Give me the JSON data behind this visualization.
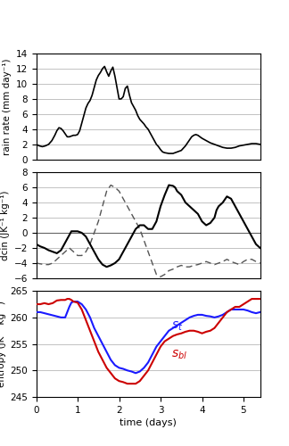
{
  "xlabel": "time (days)",
  "panel1_ylabel": "rain rate (mm day⁻¹)",
  "panel2_ylabel": "dcin (JK⁻¹ kg⁻¹)",
  "panel3_ylabel": "entropy (JK⁻¹ kg⁻¹)",
  "panel1_ylim": [
    0,
    14
  ],
  "panel2_ylim": [
    -6,
    8
  ],
  "panel3_ylim": [
    245,
    265
  ],
  "panel1_yticks": [
    0,
    2,
    4,
    6,
    8,
    10,
    12,
    14
  ],
  "panel2_yticks": [
    -6,
    -4,
    -2,
    0,
    2,
    4,
    6,
    8
  ],
  "panel3_yticks": [
    245,
    250,
    255,
    260,
    265
  ],
  "xlim": [
    0,
    5.4
  ],
  "xticks": [
    0,
    1,
    2,
    3,
    4,
    5
  ],
  "line_color": "#000000",
  "line_color_blue": "#1a1aff",
  "line_color_red": "#cc0000",
  "grid_color": "#aaaaaa",
  "background": "#ffffff",
  "label_st": "$s_t$",
  "label_sbl": "$s_{bl}$",
  "rain_x": [
    0.0,
    0.08,
    0.15,
    0.22,
    0.3,
    0.38,
    0.45,
    0.5,
    0.55,
    0.6,
    0.65,
    0.7,
    0.75,
    0.8,
    0.85,
    0.9,
    0.95,
    1.0,
    1.05,
    1.1,
    1.15,
    1.2,
    1.25,
    1.3,
    1.35,
    1.4,
    1.45,
    1.5,
    1.55,
    1.6,
    1.65,
    1.7,
    1.75,
    1.8,
    1.85,
    1.9,
    1.95,
    2.0,
    2.05,
    2.1,
    2.15,
    2.2,
    2.25,
    2.3,
    2.35,
    2.4,
    2.45,
    2.5,
    2.55,
    2.6,
    2.65,
    2.7,
    2.75,
    2.8,
    2.85,
    2.9,
    2.95,
    3.0,
    3.05,
    3.1,
    3.2,
    3.3,
    3.4,
    3.5,
    3.55,
    3.6,
    3.65,
    3.7,
    3.75,
    3.8,
    3.85,
    3.9,
    3.95,
    4.0,
    4.1,
    4.2,
    4.3,
    4.4,
    4.5,
    4.6,
    4.7,
    4.8,
    4.9,
    5.0,
    5.1,
    5.2,
    5.3,
    5.4
  ],
  "rain_y": [
    2.0,
    1.8,
    1.7,
    1.8,
    2.0,
    2.5,
    3.2,
    3.8,
    4.2,
    4.1,
    3.8,
    3.4,
    3.0,
    3.0,
    3.1,
    3.2,
    3.2,
    3.3,
    3.8,
    4.8,
    5.8,
    6.8,
    7.4,
    7.8,
    8.5,
    9.5,
    10.5,
    11.1,
    11.5,
    12.0,
    12.3,
    11.6,
    11.0,
    11.7,
    12.2,
    11.0,
    9.5,
    8.0,
    8.0,
    8.3,
    9.4,
    9.7,
    8.5,
    7.5,
    7.0,
    6.5,
    5.8,
    5.3,
    5.0,
    4.7,
    4.3,
    4.0,
    3.5,
    3.0,
    2.5,
    2.0,
    1.7,
    1.3,
    1.0,
    0.9,
    0.8,
    0.8,
    1.0,
    1.2,
    1.5,
    1.8,
    2.2,
    2.6,
    3.0,
    3.2,
    3.3,
    3.2,
    3.0,
    2.8,
    2.5,
    2.2,
    2.0,
    1.8,
    1.6,
    1.5,
    1.5,
    1.6,
    1.8,
    1.9,
    2.0,
    2.1,
    2.1,
    2.0
  ],
  "dcin_solid_x": [
    0.0,
    0.1,
    0.2,
    0.3,
    0.4,
    0.5,
    0.6,
    0.65,
    0.7,
    0.75,
    0.8,
    0.85,
    0.9,
    1.0,
    1.1,
    1.2,
    1.3,
    1.4,
    1.5,
    1.6,
    1.7,
    1.8,
    1.9,
    2.0,
    2.1,
    2.2,
    2.3,
    2.4,
    2.5,
    2.6,
    2.7,
    2.8,
    2.9,
    3.0,
    3.1,
    3.2,
    3.3,
    3.35,
    3.4,
    3.5,
    3.6,
    3.7,
    3.8,
    3.9,
    4.0,
    4.1,
    4.2,
    4.3,
    4.35,
    4.4,
    4.5,
    4.6,
    4.7,
    4.8,
    4.9,
    5.0,
    5.1,
    5.2,
    5.3,
    5.4
  ],
  "dcin_solid_y": [
    -1.5,
    -1.8,
    -2.0,
    -2.3,
    -2.5,
    -2.7,
    -2.3,
    -1.8,
    -1.3,
    -0.8,
    -0.3,
    0.2,
    0.2,
    0.2,
    0.0,
    -0.5,
    -1.5,
    -2.5,
    -3.5,
    -4.2,
    -4.5,
    -4.3,
    -4.0,
    -3.5,
    -2.5,
    -1.5,
    -0.5,
    0.5,
    1.0,
    1.0,
    0.5,
    0.5,
    1.5,
    3.5,
    5.0,
    6.3,
    6.2,
    6.0,
    5.5,
    5.0,
    4.0,
    3.5,
    3.0,
    2.5,
    1.5,
    1.0,
    1.3,
    2.0,
    3.0,
    3.5,
    4.0,
    4.8,
    4.5,
    3.5,
    2.5,
    1.5,
    0.5,
    -0.5,
    -1.5,
    -2.0
  ],
  "dcin_dashed_x": [
    0.0,
    0.1,
    0.2,
    0.3,
    0.4,
    0.5,
    0.6,
    0.7,
    0.8,
    0.9,
    1.0,
    1.1,
    1.2,
    1.3,
    1.4,
    1.5,
    1.6,
    1.7,
    1.8,
    1.9,
    2.0,
    2.1,
    2.2,
    2.3,
    2.4,
    2.5,
    2.6,
    2.7,
    2.8,
    2.9,
    3.0,
    3.1,
    3.2,
    3.3,
    3.4,
    3.5,
    3.6,
    3.7,
    3.8,
    3.9,
    4.0,
    4.1,
    4.2,
    4.3,
    4.4,
    4.5,
    4.6,
    4.7,
    4.8,
    4.9,
    5.0,
    5.1,
    5.2,
    5.3,
    5.4
  ],
  "dcin_dashed_y": [
    -4.0,
    -4.1,
    -4.2,
    -4.2,
    -4.0,
    -3.5,
    -3.0,
    -2.5,
    -2.0,
    -2.5,
    -3.0,
    -3.0,
    -2.5,
    -1.5,
    0.0,
    1.5,
    3.5,
    5.5,
    6.3,
    6.0,
    5.5,
    4.5,
    3.5,
    2.5,
    1.5,
    0.5,
    -1.0,
    -2.5,
    -4.0,
    -5.5,
    -5.8,
    -5.5,
    -5.0,
    -4.8,
    -4.5,
    -4.3,
    -4.5,
    -4.5,
    -4.3,
    -4.2,
    -4.0,
    -3.8,
    -4.0,
    -4.2,
    -4.0,
    -3.8,
    -3.5,
    -3.8,
    -4.0,
    -4.2,
    -3.8,
    -3.5,
    -3.5,
    -3.8,
    -4.0
  ],
  "entropy_st_x": [
    0.0,
    0.1,
    0.2,
    0.3,
    0.4,
    0.5,
    0.6,
    0.7,
    0.75,
    0.8,
    0.85,
    0.9,
    1.0,
    1.1,
    1.2,
    1.3,
    1.4,
    1.5,
    1.6,
    1.7,
    1.8,
    1.9,
    2.0,
    2.1,
    2.2,
    2.3,
    2.4,
    2.5,
    2.6,
    2.7,
    2.8,
    2.9,
    3.0,
    3.1,
    3.2,
    3.3,
    3.4,
    3.5,
    3.6,
    3.7,
    3.8,
    3.9,
    4.0,
    4.1,
    4.2,
    4.3,
    4.4,
    4.5,
    4.6,
    4.7,
    4.8,
    4.9,
    5.0,
    5.1,
    5.2,
    5.3,
    5.4
  ],
  "entropy_st_y": [
    261.0,
    261.0,
    260.8,
    260.6,
    260.4,
    260.2,
    260.0,
    260.0,
    261.0,
    262.0,
    262.8,
    263.0,
    263.0,
    262.5,
    261.5,
    260.0,
    258.0,
    256.5,
    255.0,
    253.5,
    252.0,
    251.0,
    250.5,
    250.3,
    250.0,
    249.8,
    249.5,
    249.8,
    250.5,
    251.5,
    253.0,
    254.5,
    255.5,
    256.5,
    257.5,
    258.0,
    258.5,
    259.0,
    259.5,
    260.0,
    260.3,
    260.5,
    260.5,
    260.3,
    260.2,
    260.0,
    260.2,
    260.5,
    261.0,
    261.5,
    261.5,
    261.5,
    261.5,
    261.3,
    261.0,
    260.8,
    261.0
  ],
  "entropy_sbl_x": [
    0.0,
    0.1,
    0.2,
    0.3,
    0.4,
    0.5,
    0.6,
    0.7,
    0.75,
    0.8,
    0.85,
    0.9,
    1.0,
    1.1,
    1.2,
    1.3,
    1.4,
    1.5,
    1.6,
    1.7,
    1.8,
    1.9,
    2.0,
    2.1,
    2.2,
    2.3,
    2.4,
    2.5,
    2.6,
    2.7,
    2.8,
    2.9,
    3.0,
    3.1,
    3.2,
    3.3,
    3.4,
    3.5,
    3.6,
    3.7,
    3.8,
    3.9,
    4.0,
    4.1,
    4.2,
    4.3,
    4.4,
    4.5,
    4.6,
    4.7,
    4.8,
    4.9,
    5.0,
    5.1,
    5.2,
    5.3,
    5.4
  ],
  "entropy_sbl_y": [
    262.5,
    262.5,
    262.7,
    262.5,
    262.7,
    263.2,
    263.3,
    263.3,
    263.5,
    263.5,
    263.3,
    263.0,
    262.8,
    261.5,
    259.5,
    257.5,
    255.5,
    253.5,
    252.0,
    250.5,
    249.5,
    248.5,
    248.0,
    247.8,
    247.5,
    247.5,
    247.5,
    248.0,
    249.0,
    250.0,
    251.5,
    253.0,
    254.5,
    255.5,
    256.0,
    256.5,
    256.8,
    257.0,
    257.3,
    257.5,
    257.5,
    257.3,
    257.0,
    257.3,
    257.5,
    258.0,
    259.0,
    260.0,
    261.0,
    261.5,
    262.0,
    262.0,
    262.5,
    263.0,
    263.5,
    263.5,
    263.5
  ]
}
